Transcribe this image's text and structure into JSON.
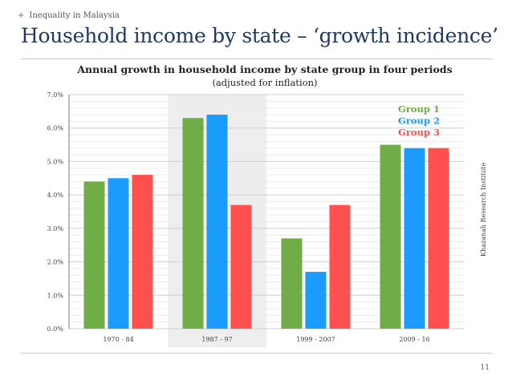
{
  "header": {
    "kicker_symbol": "+",
    "kicker": "Inequality in Malaysia",
    "title": "Household income by state – ‘growth incidence’"
  },
  "footer": {
    "page_number": "11",
    "credit": "Khazanah Research Institute"
  },
  "colors": {
    "group1": "#70ad47",
    "group2": "#1b9cfc",
    "group3": "#ff5050",
    "highlight_band": "#eeeeee"
  },
  "chart_data": {
    "type": "bar",
    "title": "Annual growth in household income by state group in four periods",
    "subtitle": "(adjusted for inflation)",
    "xlabel": "",
    "ylabel": "",
    "categories": [
      "1970 - 84",
      "1987 - 97",
      "1999 - 2007",
      "2009 - 16"
    ],
    "series": [
      {
        "name": "Group 1",
        "values": [
          4.4,
          6.3,
          2.7,
          5.5
        ]
      },
      {
        "name": "Group 2",
        "values": [
          4.5,
          6.4,
          1.7,
          5.4
        ]
      },
      {
        "name": "Group 3",
        "values": [
          4.6,
          3.7,
          3.7,
          5.4
        ]
      }
    ],
    "ylim": [
      0,
      7
    ],
    "yticks": [
      "0.0%",
      "1.0%",
      "2.0%",
      "3.0%",
      "4.0%",
      "5.0%",
      "6.0%",
      "7.0%"
    ],
    "grid": true,
    "highlighted_category": "1987 - 97",
    "legend_position": "top-right"
  }
}
